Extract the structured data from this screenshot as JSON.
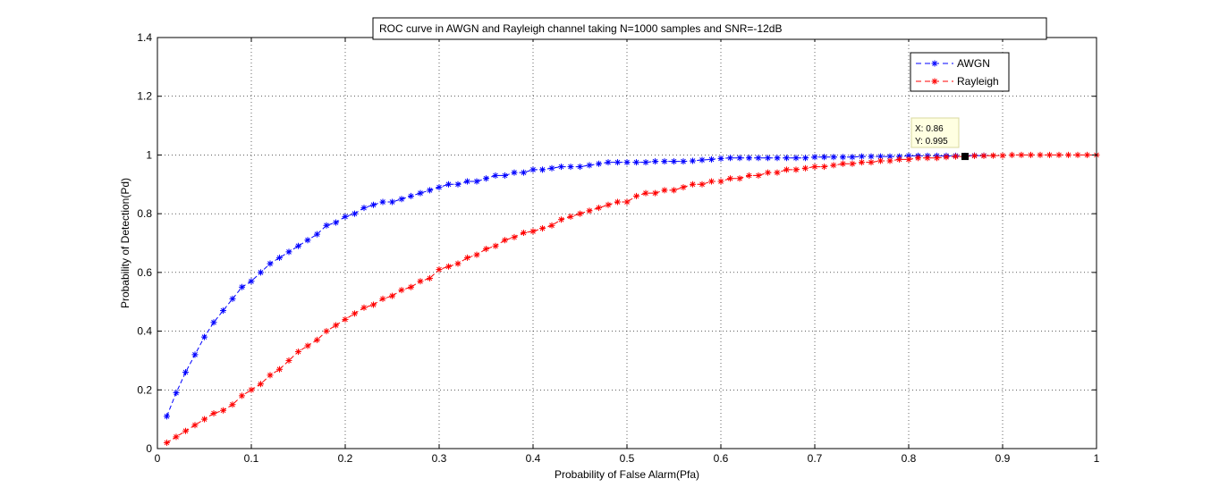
{
  "chart_data": {
    "type": "line",
    "title": "ROC curve in AWGN and Rayleigh channel taking N=1000 samples and SNR=-12dB",
    "xlabel": "Probability of False Alarm(Pfa)",
    "ylabel": "Probability of Detection(Pd)",
    "xlim": [
      0,
      1
    ],
    "ylim": [
      0,
      1.4
    ],
    "xticks": [
      0,
      0.1,
      0.2,
      0.3,
      0.4,
      0.5,
      0.6,
      0.7,
      0.8,
      0.9,
      1
    ],
    "xtick_labels": [
      "0",
      "0.1",
      "0.2",
      "0.3",
      "0.4",
      "0.5",
      "0.6",
      "0.7",
      "0.8",
      "0.9",
      "1"
    ],
    "yticks": [
      0,
      0.2,
      0.4,
      0.6,
      0.8,
      1,
      1.2,
      1.4
    ],
    "ytick_labels": [
      "0",
      "0.2",
      "0.4",
      "0.6",
      "0.8",
      "1",
      "1.2",
      "1.4"
    ],
    "grid": true,
    "legend_position": "top-right",
    "series": [
      {
        "name": "AWGN",
        "color": "#0000ff",
        "marker": "asterisk",
        "line_style": "dashed",
        "x": [
          0.01,
          0.02,
          0.03,
          0.04,
          0.05,
          0.06,
          0.07,
          0.08,
          0.09,
          0.1,
          0.11,
          0.12,
          0.13,
          0.14,
          0.15,
          0.16,
          0.17,
          0.18,
          0.19,
          0.2,
          0.21,
          0.22,
          0.23,
          0.24,
          0.25,
          0.26,
          0.27,
          0.28,
          0.29,
          0.3,
          0.31,
          0.32,
          0.33,
          0.34,
          0.35,
          0.36,
          0.37,
          0.38,
          0.39,
          0.4,
          0.41,
          0.42,
          0.43,
          0.44,
          0.45,
          0.46,
          0.47,
          0.48,
          0.49,
          0.5,
          0.51,
          0.52,
          0.53,
          0.54,
          0.55,
          0.56,
          0.57,
          0.58,
          0.59,
          0.6,
          0.61,
          0.62,
          0.63,
          0.64,
          0.65,
          0.66,
          0.67,
          0.68,
          0.69,
          0.7,
          0.71,
          0.72,
          0.73,
          0.74,
          0.75,
          0.76,
          0.77,
          0.78,
          0.79,
          0.8,
          0.81,
          0.82,
          0.83,
          0.84,
          0.85,
          0.86,
          0.87,
          0.88
        ],
        "y": [
          0.11,
          0.19,
          0.26,
          0.32,
          0.38,
          0.43,
          0.47,
          0.51,
          0.55,
          0.57,
          0.6,
          0.63,
          0.65,
          0.67,
          0.69,
          0.71,
          0.73,
          0.76,
          0.77,
          0.79,
          0.8,
          0.82,
          0.83,
          0.84,
          0.84,
          0.85,
          0.86,
          0.87,
          0.88,
          0.89,
          0.9,
          0.9,
          0.91,
          0.91,
          0.92,
          0.93,
          0.93,
          0.94,
          0.94,
          0.95,
          0.95,
          0.955,
          0.96,
          0.96,
          0.96,
          0.965,
          0.97,
          0.975,
          0.975,
          0.975,
          0.975,
          0.975,
          0.978,
          0.978,
          0.978,
          0.978,
          0.98,
          0.983,
          0.985,
          0.988,
          0.99,
          0.99,
          0.99,
          0.99,
          0.99,
          0.99,
          0.99,
          0.99,
          0.99,
          0.993,
          0.993,
          0.993,
          0.993,
          0.993,
          0.995,
          0.995,
          0.995,
          0.995,
          0.995,
          0.997,
          0.997,
          0.997,
          0.997,
          0.997,
          0.997,
          0.997,
          0.998,
          0.998
        ]
      },
      {
        "name": "Rayleigh",
        "color": "#ff0000",
        "marker": "asterisk",
        "line_style": "dashed",
        "x": [
          0.01,
          0.02,
          0.03,
          0.04,
          0.05,
          0.06,
          0.07,
          0.08,
          0.09,
          0.1,
          0.11,
          0.12,
          0.13,
          0.14,
          0.15,
          0.16,
          0.17,
          0.18,
          0.19,
          0.2,
          0.21,
          0.22,
          0.23,
          0.24,
          0.25,
          0.26,
          0.27,
          0.28,
          0.29,
          0.3,
          0.31,
          0.32,
          0.33,
          0.34,
          0.35,
          0.36,
          0.37,
          0.38,
          0.39,
          0.4,
          0.41,
          0.42,
          0.43,
          0.44,
          0.45,
          0.46,
          0.47,
          0.48,
          0.49,
          0.5,
          0.51,
          0.52,
          0.53,
          0.54,
          0.55,
          0.56,
          0.57,
          0.58,
          0.59,
          0.6,
          0.61,
          0.62,
          0.63,
          0.64,
          0.65,
          0.66,
          0.67,
          0.68,
          0.69,
          0.7,
          0.71,
          0.72,
          0.73,
          0.74,
          0.75,
          0.76,
          0.77,
          0.78,
          0.79,
          0.8,
          0.81,
          0.82,
          0.83,
          0.84,
          0.85,
          0.86,
          0.87,
          0.88,
          0.89,
          0.9,
          0.91,
          0.92,
          0.93,
          0.94,
          0.95,
          0.96,
          0.97,
          0.98,
          0.99,
          1.0
        ],
        "y": [
          0.02,
          0.04,
          0.06,
          0.08,
          0.1,
          0.12,
          0.13,
          0.15,
          0.18,
          0.2,
          0.22,
          0.25,
          0.27,
          0.3,
          0.33,
          0.35,
          0.37,
          0.4,
          0.42,
          0.44,
          0.46,
          0.48,
          0.49,
          0.51,
          0.52,
          0.54,
          0.55,
          0.57,
          0.58,
          0.61,
          0.62,
          0.63,
          0.65,
          0.66,
          0.68,
          0.69,
          0.71,
          0.72,
          0.735,
          0.74,
          0.75,
          0.76,
          0.78,
          0.79,
          0.8,
          0.81,
          0.82,
          0.83,
          0.84,
          0.84,
          0.86,
          0.87,
          0.87,
          0.88,
          0.88,
          0.89,
          0.9,
          0.9,
          0.91,
          0.91,
          0.92,
          0.92,
          0.93,
          0.93,
          0.94,
          0.94,
          0.95,
          0.95,
          0.955,
          0.96,
          0.96,
          0.965,
          0.97,
          0.97,
          0.975,
          0.975,
          0.98,
          0.98,
          0.985,
          0.985,
          0.99,
          0.99,
          0.99,
          0.993,
          0.995,
          0.995,
          0.997,
          0.997,
          0.998,
          0.998,
          1.0,
          1.0,
          1.0,
          1.0,
          1.0,
          1.0,
          1.0,
          1.0,
          1.0,
          1.0
        ]
      }
    ],
    "datatip": {
      "x": 0.86,
      "y": 0.995,
      "x_text": "X: 0.86",
      "y_text": "Y: 0.995"
    }
  }
}
